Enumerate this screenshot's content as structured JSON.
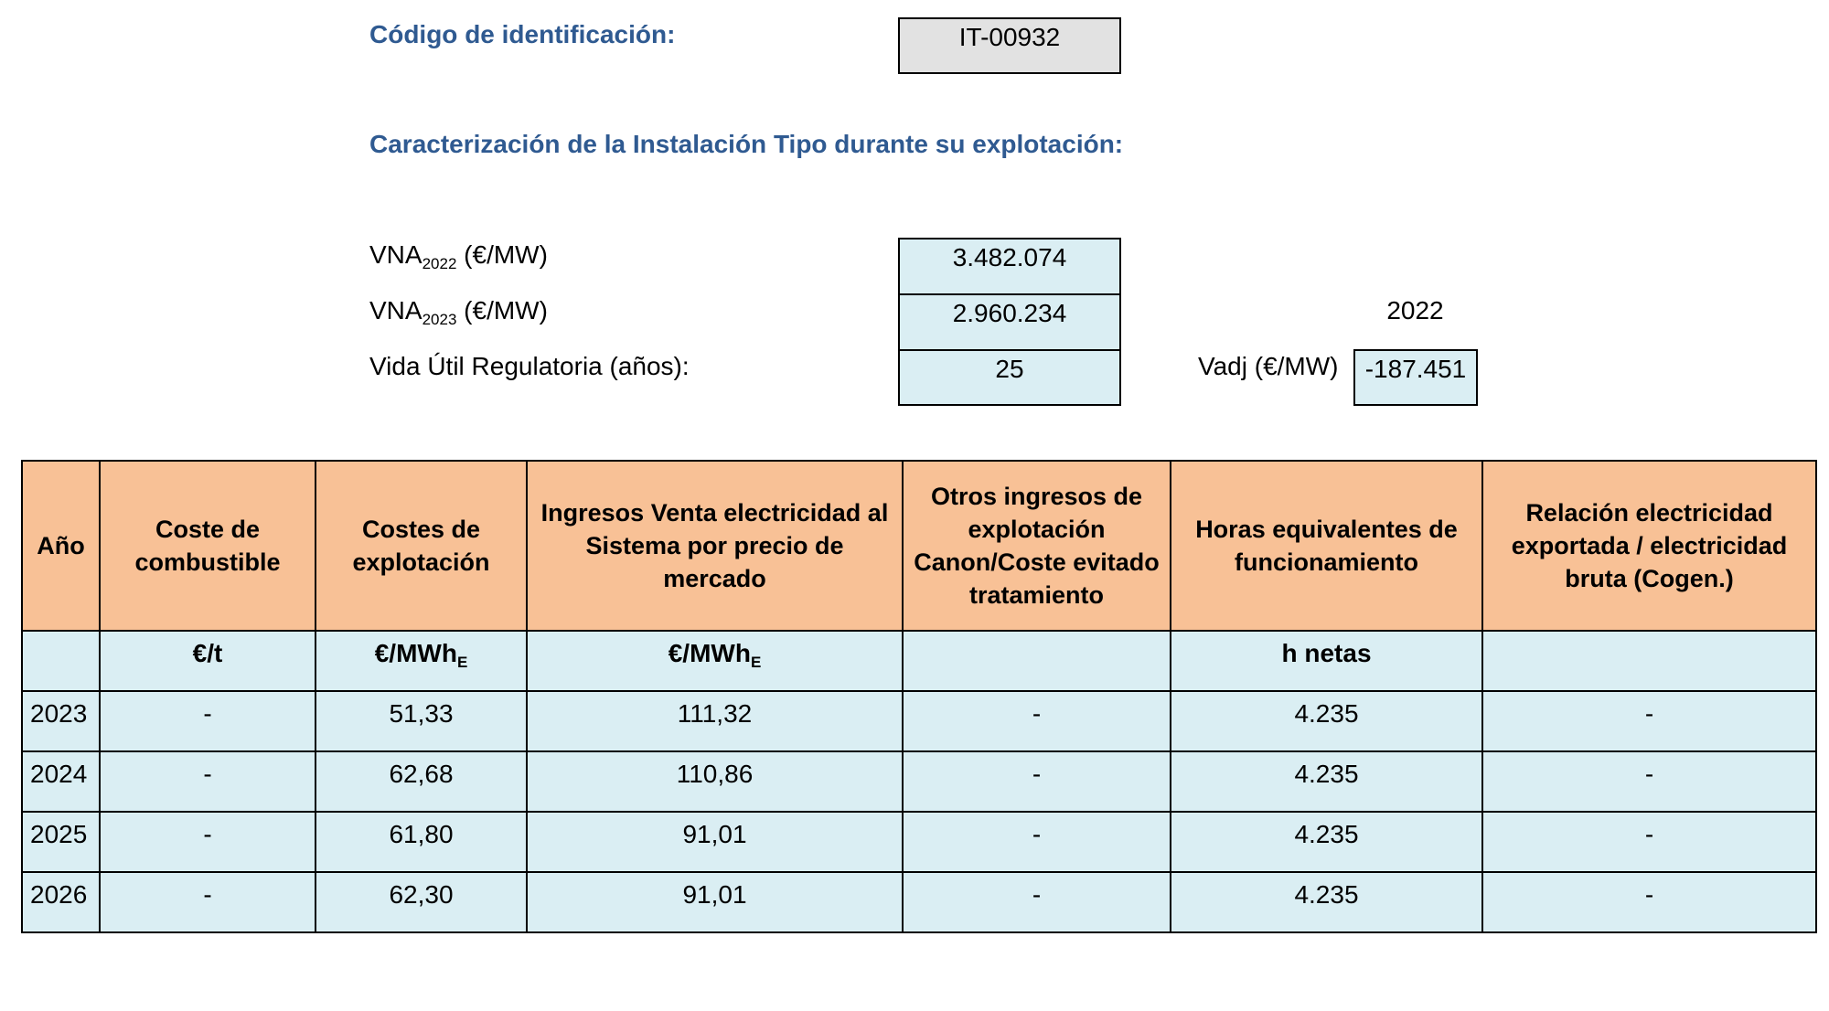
{
  "identification": {
    "label": "Código de identificación:",
    "code": "IT-00932"
  },
  "characterization": {
    "heading": "Caracterización de la Instalación Tipo durante su explotación:"
  },
  "parameters": {
    "vna_2022": {
      "label": "VNA",
      "sub": "2022",
      "unit": " (€/MW)",
      "value": "3.482.074"
    },
    "vna_2023": {
      "label": "VNA",
      "sub": "2023",
      "unit": " (€/MW)",
      "value": "2.960.234"
    },
    "vida_util": {
      "label": "Vida Útil Regulatoria (años):",
      "value": "25"
    },
    "vadj": {
      "year": "2022",
      "label": "Vadj (€/MW)",
      "value": "-187.451"
    }
  },
  "table": {
    "headers": [
      "Año",
      "Coste de combustible",
      "Costes de explotación",
      "Ingresos Venta electricidad al Sistema por precio de mercado",
      "Otros ingresos de explotación Canon/Coste evitado tratamiento",
      "Horas equivalentes de funcionamiento",
      "Relación electricidad exportada / electricidad bruta (Cogen.)"
    ],
    "units": [
      {
        "text": "",
        "sub": ""
      },
      {
        "text": "€/t",
        "sub": ""
      },
      {
        "text": "€/MWh",
        "sub": "E"
      },
      {
        "text": "€/MWh",
        "sub": "E"
      },
      {
        "text": "",
        "sub": ""
      },
      {
        "text": "h netas",
        "sub": ""
      },
      {
        "text": "",
        "sub": ""
      }
    ],
    "rows": [
      [
        "2023",
        "-",
        "51,33",
        "111,32",
        "-",
        "4.235",
        "-"
      ],
      [
        "2024",
        "-",
        "62,68",
        "110,86",
        "-",
        "4.235",
        "-"
      ],
      [
        "2025",
        "-",
        "61,80",
        "91,01",
        "-",
        "4.235",
        "-"
      ],
      [
        "2026",
        "-",
        "62,30",
        "91,01",
        "-",
        "4.235",
        "-"
      ]
    ]
  },
  "colors": {
    "heading": "#2f5a91",
    "header_fill": "#f8c196",
    "cell_fill": "#daeef3",
    "code_fill": "#e2e2e2"
  }
}
